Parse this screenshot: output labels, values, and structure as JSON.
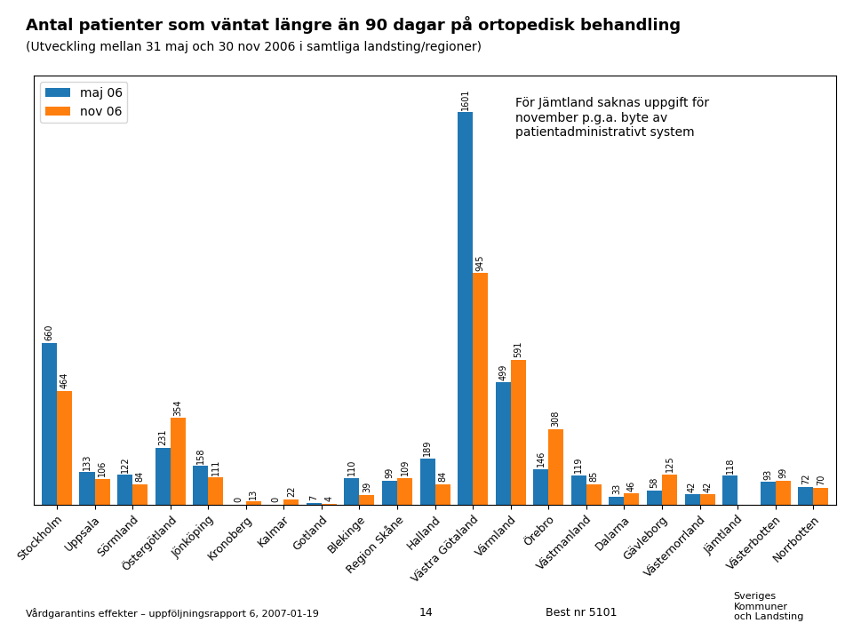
{
  "chart_data": {
    "type": "bar",
    "title": "Antal patienter som väntat längre än 90 dagar på ortopedisk behandling",
    "subtitle": "(Utveckling mellan 31 maj och 30 nov 2006 i samtliga landsting/regioner)",
    "categories": [
      "Stockholm",
      "Uppsala",
      "Sörmland",
      "Östergötland",
      "Jönköping",
      "Kronoberg",
      "Kalmar",
      "Gotland",
      "Blekinge",
      "Region Skåne",
      "Halland",
      "Västra Götaland",
      "Värmland",
      "Örebro",
      "Västmanland",
      "Dalarna",
      "Gävleborg",
      "Västernorrland",
      "Jämtland",
      "Västerbotten",
      "Norrbotten"
    ],
    "series": [
      {
        "name": "maj 06",
        "values": [
          660,
          133,
          122,
          231,
          158,
          0,
          0,
          7,
          110,
          99,
          189,
          1601,
          499,
          146,
          119,
          33,
          58,
          42,
          118,
          93,
          72
        ]
      },
      {
        "name": "nov 06",
        "values": [
          464,
          106,
          84,
          354,
          111,
          13,
          22,
          4,
          39,
          109,
          84,
          945,
          591,
          308,
          85,
          46,
          125,
          42,
          null,
          99,
          70
        ]
      }
    ],
    "ylim": [
      0,
      1750
    ],
    "grid": false,
    "legend": "upper left",
    "data_labels": true,
    "tick_labels": "x",
    "annotations": [
      "För Jämtland saknas uppgift för\nnovember p.g.a. byte av\npatientadministrativt system",
      "Vårdgarantins effekter – uppföljningsrapport 6, 2007-01-19",
      "14",
      "Best nr 5101",
      "Sveriges\nKommuner\noch Landsting"
    ]
  }
}
